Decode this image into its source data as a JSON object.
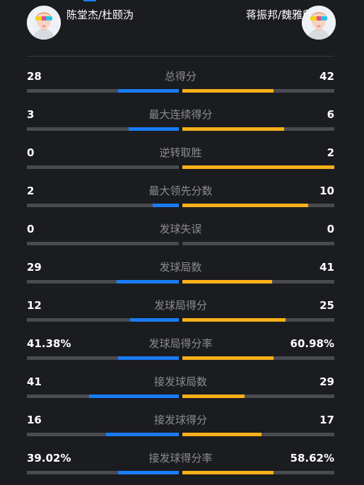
{
  "players": {
    "left": {
      "name": "陈堂杰/杜颐沩",
      "avatar": "player-avatar-icon"
    },
    "right": {
      "name": "蒋振邦/魏雅欣",
      "avatar": "player-avatar-icon"
    }
  },
  "colors": {
    "left": "#1a7cf5",
    "right": "#f9b019",
    "track": "#4a4b50"
  },
  "stats": [
    {
      "label": "总得分",
      "left": "28",
      "right": "42",
      "left_fraction": 0.4,
      "right_fraction": 0.6
    },
    {
      "label": "最大连续得分",
      "left": "3",
      "right": "6",
      "left_fraction": 0.33,
      "right_fraction": 0.67
    },
    {
      "label": "逆转取胜",
      "left": "0",
      "right": "2",
      "left_fraction": 0.0,
      "right_fraction": 1.0
    },
    {
      "label": "最大领先分数",
      "left": "2",
      "right": "10",
      "left_fraction": 0.17,
      "right_fraction": 0.83
    },
    {
      "label": "发球失误",
      "left": "0",
      "right": "0",
      "left_fraction": 0.0,
      "right_fraction": 0.0
    },
    {
      "label": "发球局数",
      "left": "29",
      "right": "41",
      "left_fraction": 0.41,
      "right_fraction": 0.59
    },
    {
      "label": "发球局得分",
      "left": "12",
      "right": "25",
      "left_fraction": 0.32,
      "right_fraction": 0.68
    },
    {
      "label": "发球局得分率",
      "left": "41.38%",
      "right": "60.98%",
      "left_fraction": 0.4,
      "right_fraction": 0.6
    },
    {
      "label": "接发球局数",
      "left": "41",
      "right": "29",
      "left_fraction": 0.59,
      "right_fraction": 0.41
    },
    {
      "label": "接发球得分",
      "left": "16",
      "right": "17",
      "left_fraction": 0.48,
      "right_fraction": 0.52
    },
    {
      "label": "接发球得分率",
      "left": "39.02%",
      "right": "58.62%",
      "left_fraction": 0.4,
      "right_fraction": 0.6
    }
  ]
}
